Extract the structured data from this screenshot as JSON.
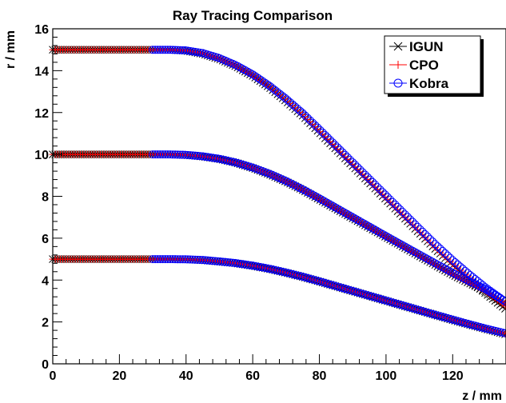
{
  "chart_data": {
    "type": "scatter",
    "title": "Ray Tracing Comparison",
    "xlabel": "z / mm",
    "ylabel": "r / mm",
    "xlim": [
      0,
      136
    ],
    "ylim": [
      0,
      16
    ],
    "x_ticks": [
      0,
      20,
      40,
      60,
      80,
      100,
      120
    ],
    "y_ticks": [
      0,
      2,
      4,
      6,
      8,
      10,
      12,
      14,
      16
    ],
    "grid": false,
    "legend_position": "top-right",
    "series": [
      {
        "name": "IGUN",
        "marker": "x",
        "color": "#000000",
        "rays": [
          {
            "x": [
              0,
              10,
              20,
              30,
              35,
              40,
              45,
              50,
              55,
              60,
              65,
              70,
              75,
              80,
              85,
              90,
              95,
              100,
              105,
              110,
              115,
              120,
              125,
              130,
              136
            ],
            "y": [
              15.0,
              15.0,
              15.0,
              15.0,
              15.0,
              14.95,
              14.8,
              14.55,
              14.2,
              13.75,
              13.2,
              12.55,
              11.85,
              11.05,
              10.25,
              9.45,
              8.65,
              7.85,
              7.05,
              6.25,
              5.45,
              4.7,
              4.0,
              3.35,
              2.6
            ]
          },
          {
            "x": [
              0,
              10,
              20,
              30,
              35,
              40,
              45,
              50,
              55,
              60,
              65,
              70,
              75,
              80,
              85,
              90,
              95,
              100,
              105,
              110,
              115,
              120,
              125,
              130,
              136
            ],
            "y": [
              10.0,
              10.0,
              10.0,
              10.0,
              10.0,
              9.97,
              9.9,
              9.78,
              9.6,
              9.35,
              9.05,
              8.7,
              8.3,
              7.85,
              7.4,
              6.95,
              6.5,
              6.05,
              5.6,
              5.15,
              4.7,
              4.25,
              3.85,
              3.45,
              2.8
            ]
          },
          {
            "x": [
              0,
              10,
              20,
              30,
              35,
              40,
              45,
              50,
              55,
              60,
              65,
              70,
              75,
              80,
              85,
              90,
              95,
              100,
              105,
              110,
              115,
              120,
              125,
              130,
              136
            ],
            "y": [
              5.0,
              5.0,
              5.0,
              5.0,
              5.0,
              4.99,
              4.95,
              4.88,
              4.8,
              4.68,
              4.53,
              4.35,
              4.15,
              3.93,
              3.7,
              3.47,
              3.24,
              3.01,
              2.78,
              2.55,
              2.32,
              2.09,
              1.87,
              1.66,
              1.4
            ]
          }
        ]
      },
      {
        "name": "CPO",
        "marker": "+",
        "color": "#ff0000",
        "rays": [
          {
            "x": [
              0,
              10,
              20,
              30,
              35,
              40,
              45,
              50,
              55,
              60,
              65,
              70,
              75,
              80,
              85,
              90,
              95,
              100,
              105,
              110,
              115,
              120,
              125,
              130,
              136
            ],
            "y": [
              15.0,
              15.0,
              15.0,
              15.0,
              15.0,
              14.96,
              14.82,
              14.57,
              14.22,
              13.78,
              13.23,
              12.6,
              11.9,
              11.12,
              10.32,
              9.52,
              8.72,
              7.92,
              7.12,
              6.32,
              5.52,
              4.78,
              4.1,
              3.45,
              2.75
            ]
          },
          {
            "x": [
              0,
              10,
              20,
              30,
              35,
              40,
              45,
              50,
              55,
              60,
              65,
              70,
              75,
              80,
              85,
              90,
              95,
              100,
              105,
              110,
              115,
              120,
              125,
              130,
              136
            ],
            "y": [
              10.0,
              10.0,
              10.0,
              10.0,
              10.0,
              9.97,
              9.9,
              9.78,
              9.6,
              9.36,
              9.06,
              8.71,
              8.31,
              7.87,
              7.42,
              6.97,
              6.52,
              6.07,
              5.62,
              5.17,
              4.72,
              4.28,
              3.88,
              3.48,
              2.85
            ]
          },
          {
            "x": [
              0,
              10,
              20,
              30,
              35,
              40,
              45,
              50,
              55,
              60,
              65,
              70,
              75,
              80,
              85,
              90,
              95,
              100,
              105,
              110,
              115,
              120,
              125,
              130,
              136
            ],
            "y": [
              5.0,
              5.0,
              5.0,
              5.0,
              5.0,
              4.99,
              4.95,
              4.88,
              4.8,
              4.68,
              4.53,
              4.35,
              4.15,
              3.93,
              3.7,
              3.47,
              3.24,
              3.01,
              2.78,
              2.55,
              2.32,
              2.1,
              1.88,
              1.67,
              1.42
            ]
          }
        ]
      },
      {
        "name": "Kobra",
        "marker": "o",
        "color": "#0000ff",
        "rays": [
          {
            "x": [
              30,
              35,
              40,
              45,
              50,
              55,
              60,
              65,
              70,
              75,
              80,
              85,
              90,
              95,
              100,
              105,
              110,
              115,
              120,
              125,
              130,
              136
            ],
            "y": [
              15.0,
              15.0,
              14.97,
              14.84,
              14.6,
              14.26,
              13.82,
              13.28,
              12.66,
              11.97,
              11.2,
              10.41,
              9.62,
              8.83,
              8.04,
              7.25,
              6.46,
              5.68,
              4.95,
              4.27,
              3.63,
              2.95
            ]
          },
          {
            "x": [
              30,
              35,
              40,
              45,
              50,
              55,
              60,
              65,
              70,
              75,
              80,
              85,
              90,
              95,
              100,
              105,
              110,
              115,
              120,
              125,
              130,
              136
            ],
            "y": [
              10.0,
              10.0,
              9.98,
              9.91,
              9.79,
              9.61,
              9.37,
              9.08,
              8.73,
              8.33,
              7.9,
              7.45,
              7.0,
              6.55,
              6.1,
              5.66,
              5.22,
              4.78,
              4.34,
              3.94,
              3.55,
              2.95
            ]
          },
          {
            "x": [
              30,
              35,
              40,
              45,
              50,
              55,
              60,
              65,
              70,
              75,
              80,
              85,
              90,
              95,
              100,
              105,
              110,
              115,
              120,
              125,
              130,
              136
            ],
            "y": [
              5.0,
              5.0,
              4.99,
              4.96,
              4.89,
              4.81,
              4.69,
              4.54,
              4.36,
              4.16,
              3.94,
              3.71,
              3.48,
              3.25,
              3.02,
              2.79,
              2.56,
              2.33,
              2.11,
              1.89,
              1.68,
              1.45
            ]
          }
        ]
      }
    ]
  }
}
